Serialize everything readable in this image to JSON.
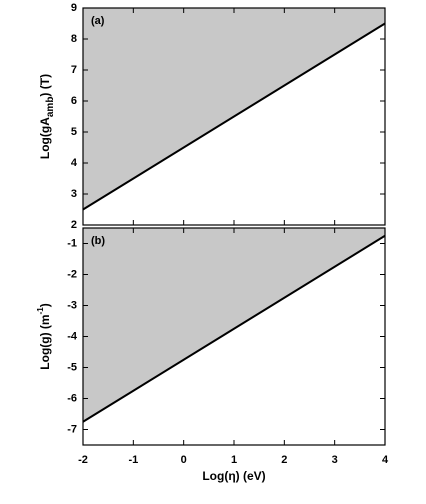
{
  "chart_data": [
    {
      "type": "line",
      "panel_label": "(a)",
      "ylabel": {
        "main": "Log(gA",
        "sub": "amb",
        "end": ") (T)"
      },
      "x": [
        -2,
        4
      ],
      "series": [
        {
          "values": [
            2.5,
            8.5
          ],
          "color": "#000000",
          "fill": "#c8c8c8"
        }
      ],
      "xlim": [
        -2,
        4
      ],
      "xticks": [
        -2,
        -1,
        0,
        1,
        2,
        3,
        4
      ],
      "ylim": [
        2,
        9
      ],
      "yticks": [
        2,
        3,
        4,
        5,
        6,
        7,
        8,
        9
      ]
    },
    {
      "type": "line",
      "panel_label": "(b)",
      "ylabel": {
        "main": "Log(g) (m",
        "sup": "-1",
        "end": ")"
      },
      "xlabel": "Log(η) (eV)",
      "x": [
        -2,
        4
      ],
      "series": [
        {
          "values": [
            -6.75,
            -0.75
          ],
          "color": "#000000",
          "fill": "#c8c8c8"
        }
      ],
      "xlim": [
        -2,
        4
      ],
      "xticks": [
        -2,
        -1,
        0,
        1,
        2,
        3,
        4
      ],
      "ylim": [
        -7.5,
        -0.5
      ],
      "yticks": [
        -7,
        -6,
        -5,
        -4,
        -3,
        -2,
        -1
      ]
    }
  ]
}
